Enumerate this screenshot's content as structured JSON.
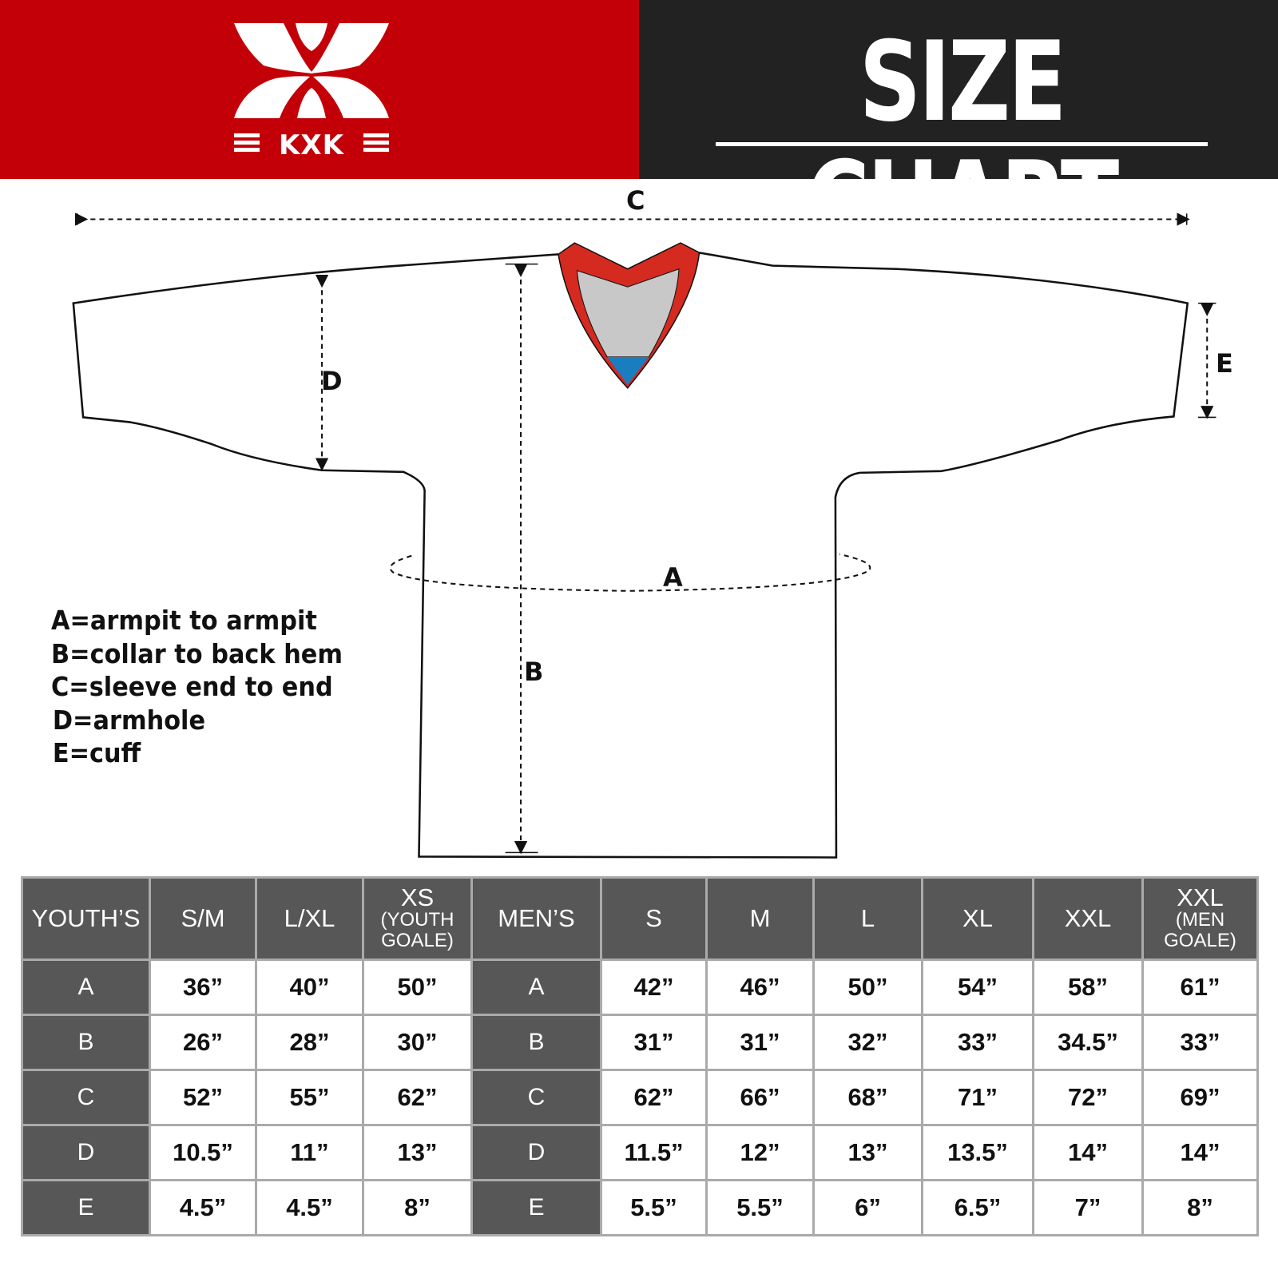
{
  "brand": {
    "logo_text": "KXK",
    "color_red": "#c30007",
    "color_dark": "#222222"
  },
  "header": {
    "title": "SIZE CHART"
  },
  "diagram": {
    "labels": {
      "A": "A",
      "B": "B",
      "C": "C",
      "D": "D",
      "E": "E"
    },
    "legend": [
      "A=armpit to armpit",
      "B=collar to back hem",
      "C=sleeve end to end",
      "D=armhole",
      "E=cuff"
    ],
    "collar_colors": {
      "trim": "#d42a20",
      "inner": "#c8c8c8",
      "tag": "#1a7dc0"
    }
  },
  "table": {
    "youth": {
      "header": "YOUTH’S",
      "columns": [
        {
          "label": "S/M"
        },
        {
          "label": "L/XL"
        },
        {
          "label": "XS",
          "sub": "(YOUTH GOALE)"
        }
      ],
      "rows": [
        {
          "key": "A",
          "values": [
            "36”",
            "40”",
            "50”"
          ]
        },
        {
          "key": "B",
          "values": [
            "26”",
            "28”",
            "30”"
          ]
        },
        {
          "key": "C",
          "values": [
            "52”",
            "55”",
            "62”"
          ]
        },
        {
          "key": "D",
          "values": [
            "10.5”",
            "11”",
            "13”"
          ]
        },
        {
          "key": "E",
          "values": [
            "4.5”",
            "4.5”",
            "8”"
          ]
        }
      ]
    },
    "men": {
      "header": "MEN’S",
      "columns": [
        {
          "label": "S"
        },
        {
          "label": "M"
        },
        {
          "label": "L"
        },
        {
          "label": "XL"
        },
        {
          "label": "XXL"
        },
        {
          "label": "XXL",
          "sub": "(MEN GOALE)"
        }
      ],
      "rows": [
        {
          "key": "A",
          "values": [
            "42”",
            "46”",
            "50”",
            "54”",
            "58”",
            "61”"
          ]
        },
        {
          "key": "B",
          "values": [
            "31”",
            "31”",
            "32”",
            "33”",
            "34.5”",
            "33”"
          ]
        },
        {
          "key": "C",
          "values": [
            "62”",
            "66”",
            "68”",
            "71”",
            "72”",
            "69”"
          ]
        },
        {
          "key": "D",
          "values": [
            "11.5”",
            "12”",
            "13”",
            "13.5”",
            "14”",
            "14”"
          ]
        },
        {
          "key": "E",
          "values": [
            "5.5”",
            "5.5”",
            "6”",
            "6.5”",
            "7”",
            "8”"
          ]
        }
      ]
    }
  }
}
